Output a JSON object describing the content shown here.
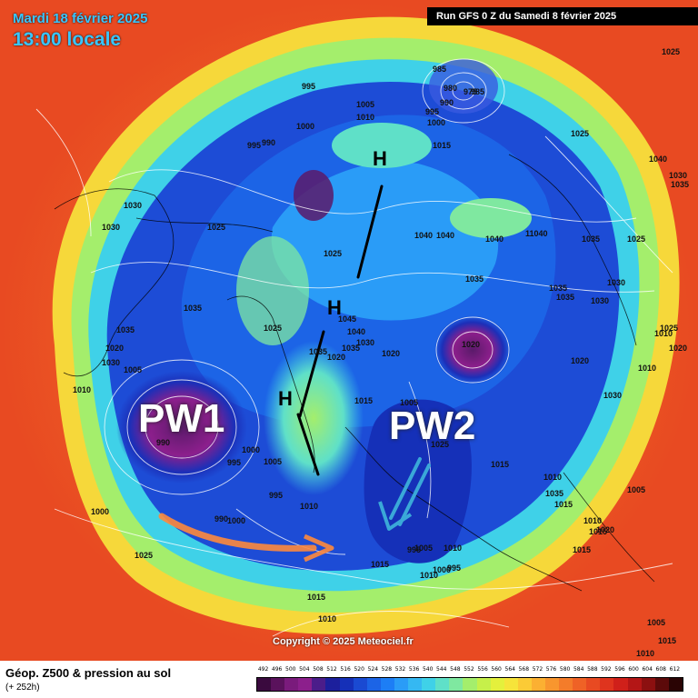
{
  "header": {
    "date": "Mardi 18 février 2025",
    "local_time": "13:00 locale",
    "run": "Run GFS 0 Z du Samedi 8 février 2025"
  },
  "annotations": {
    "pw1": "PW1",
    "pw2": "PW2",
    "h1": "H",
    "h2": "H",
    "h3": "H"
  },
  "isobar_labels": [
    "995",
    "1005",
    "1010",
    "985",
    "980",
    "975",
    "995",
    "1000",
    "1000",
    "995",
    "990",
    "1015",
    "1025",
    "1030",
    "1030",
    "1025",
    "1025",
    "1040",
    "1040",
    "1040",
    "11040",
    "1035",
    "1025",
    "1035",
    "1035",
    "1030",
    "1030",
    "1020",
    "1010",
    "1035",
    "1035",
    "1025",
    "1020",
    "1015",
    "1005",
    "1010",
    "1015",
    "1010",
    "1015",
    "1030",
    "1025",
    "1020",
    "1045",
    "1040",
    "1035",
    "1035",
    "1030",
    "1020",
    "1020",
    "1025",
    "1030",
    "1035",
    "1005",
    "1020",
    "1010",
    "1000",
    "1015",
    "1035",
    "990",
    "995",
    "1000",
    "1005",
    "995",
    "1010",
    "990",
    "1000",
    "995",
    "1025",
    "1015",
    "1010",
    "1015",
    "1010",
    "1015",
    "1005",
    "1005",
    "1010",
    "1015",
    "1020",
    "1025",
    "1030",
    "1035",
    "1040",
    "1010",
    "1005",
    "1010",
    "1000",
    "995",
    "990",
    "985",
    "980"
  ],
  "copyright": "Copyright © 2025 Meteociel.fr",
  "footer": {
    "title": "Géop. Z500 & pression au sol",
    "subtitle": "(+ 252h)",
    "scale_labels": [
      "492",
      "496",
      "500",
      "504",
      "508",
      "512",
      "516",
      "520",
      "524",
      "528",
      "532",
      "536",
      "540",
      "544",
      "548",
      "552",
      "556",
      "560",
      "564",
      "568",
      "572",
      "576",
      "580",
      "584",
      "588",
      "592",
      "596",
      "600",
      "604",
      "608",
      "612"
    ],
    "scale_colors": [
      "#3a0a3e",
      "#5a125c",
      "#7a1b7c",
      "#8c1f8c",
      "#4b1d8a",
      "#1c1f9c",
      "#1530b8",
      "#1a4ad2",
      "#1c64e6",
      "#1d7ef5",
      "#2a9cf7",
      "#35b8f2",
      "#3fd1e8",
      "#5fe0c8",
      "#7fe8a0",
      "#a4ee6c",
      "#c6f04a",
      "#e4f03c",
      "#f6e43a",
      "#fbcb36",
      "#fbb032",
      "#f8962e",
      "#f47c2a",
      "#ef6226",
      "#e84a22",
      "#df341e",
      "#d0201a",
      "#b41616",
      "#8c1010",
      "#5c0a0a",
      "#2a0404"
    ]
  },
  "colors": {
    "low_core": "#5a1a6a",
    "trough": "#1c2fb8",
    "ridge": "#f47c2a",
    "arrow_orange": "#ff8a3c",
    "arrow_blue": "#3aa8d8"
  }
}
